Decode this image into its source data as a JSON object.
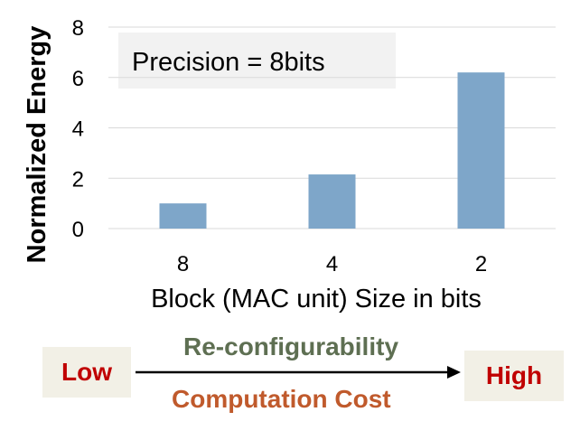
{
  "chart_data": {
    "type": "bar",
    "categories": [
      "8",
      "4",
      "2"
    ],
    "values": [
      1.0,
      2.15,
      6.2
    ],
    "title": "",
    "annotation": "Precision = 8bits",
    "xlabel": "Block (MAC unit) Size in bits",
    "ylabel": "Normalized Energy",
    "ylim": [
      0,
      8
    ],
    "yticks": [
      "0",
      "2",
      "4",
      "6",
      "8"
    ],
    "grid": true,
    "bar_color": "#7ea6c9"
  },
  "scale": {
    "low_label": "Low",
    "high_label": "High",
    "top_caption": "Re-configurability",
    "bottom_caption": "Computation Cost",
    "low_color": "#c00000",
    "high_color": "#c00000",
    "top_caption_color": "#5e6f52",
    "bottom_caption_color": "#c05a2c"
  }
}
